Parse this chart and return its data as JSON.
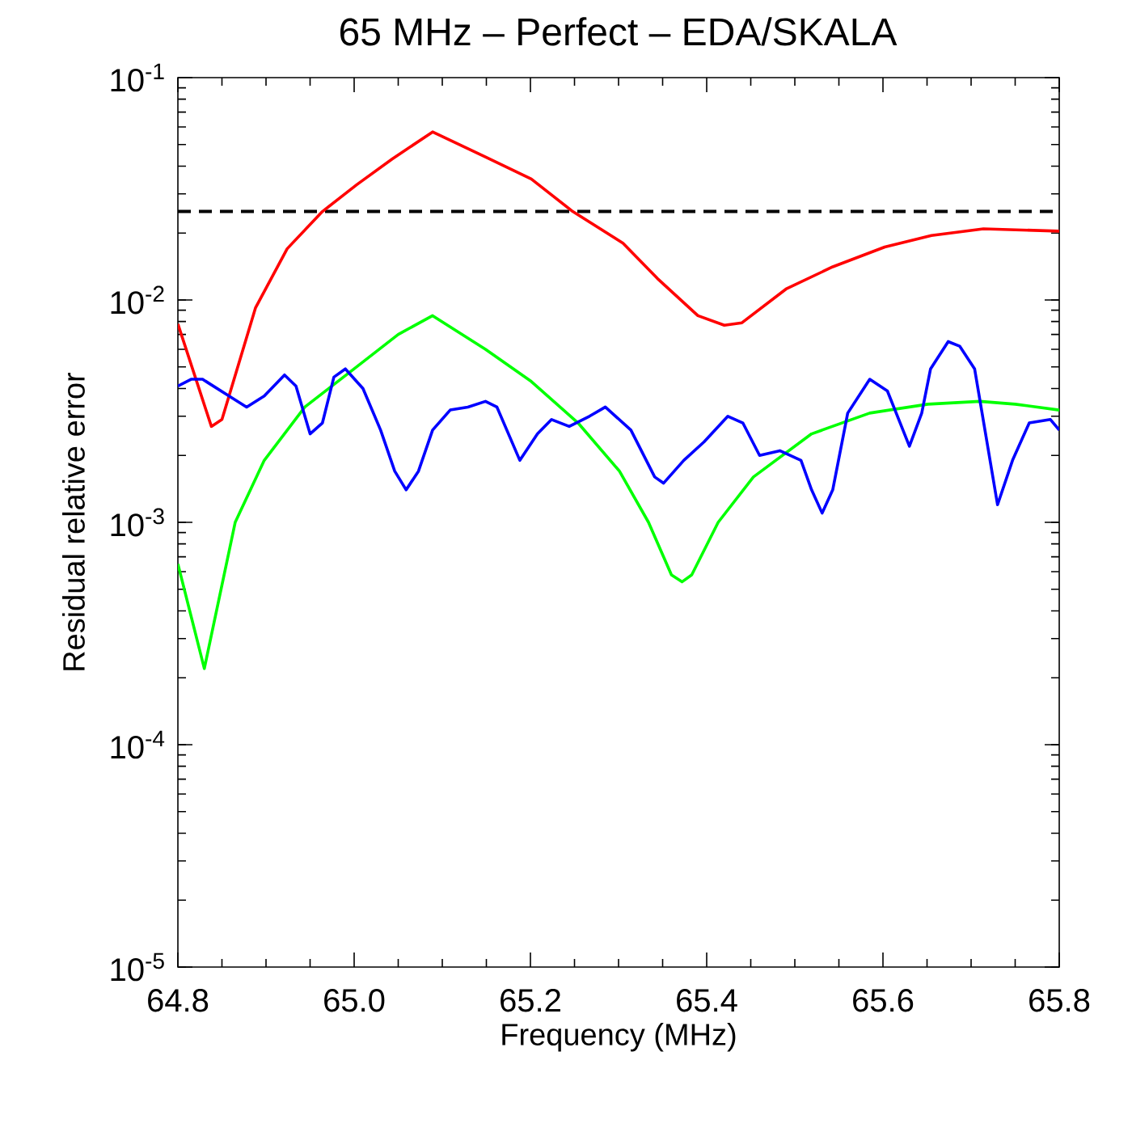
{
  "chart_data": {
    "type": "line",
    "title": "65 MHz – Perfect – EDA/SKALA",
    "xlabel": "Frequency (MHz)",
    "ylabel": "Residual relative error",
    "log": "y",
    "grid": false,
    "marker": "none",
    "line_style": "solid",
    "xlim": [
      64.8,
      65.8
    ],
    "ylim": [
      1e-05,
      0.1
    ],
    "xticks": [
      {
        "value": 64.8,
        "label": "64.8"
      },
      {
        "value": 65.0,
        "label": "65.0"
      },
      {
        "value": 65.2,
        "label": "65.2"
      },
      {
        "value": 65.4,
        "label": "65.4"
      },
      {
        "value": 65.6,
        "label": "65.6"
      },
      {
        "value": 65.8,
        "label": "65.8"
      }
    ],
    "yticks": [
      {
        "value": 1e-05,
        "label": "10$^{-5}$"
      },
      {
        "value": 0.0001,
        "label": "10$^{-4}$"
      },
      {
        "value": 0.001,
        "label": "10$^{-3}$"
      },
      {
        "value": 0.01,
        "label": "10$^{-2}$"
      },
      {
        "value": 0.1,
        "label": "10$^{-1}$"
      }
    ],
    "ref_lines": [
      {
        "axis": "y",
        "value": 0.025,
        "color": "#000000",
        "line_style": "dashed"
      }
    ],
    "series": [
      {
        "color": "#ff0000",
        "x": [
          64.8,
          64.838,
          64.85,
          64.888,
          64.924,
          64.964,
          65.003,
          65.043,
          65.089,
          65.149,
          65.201,
          65.248,
          65.305,
          65.344,
          65.39,
          65.42,
          65.44,
          65.49,
          65.543,
          65.602,
          65.655,
          65.714,
          65.8
        ],
        "values": [
          0.0078,
          0.0027,
          0.0029,
          0.0092,
          0.017,
          0.025,
          0.033,
          0.043,
          0.057,
          0.044,
          0.035,
          0.025,
          0.018,
          0.0125,
          0.0085,
          0.0077,
          0.0079,
          0.0112,
          0.0141,
          0.0173,
          0.0195,
          0.0209,
          0.0204
        ]
      },
      {
        "color": "#00ff00",
        "x": [
          64.8,
          64.83,
          64.865,
          64.898,
          64.944,
          64.997,
          65.05,
          65.089,
          65.149,
          65.201,
          65.254,
          65.301,
          65.334,
          65.36,
          65.372,
          65.383,
          65.413,
          65.453,
          65.519,
          65.585,
          65.651,
          65.71,
          65.75,
          65.8
        ],
        "values": [
          0.00065,
          0.00022,
          0.001,
          0.0019,
          0.0033,
          0.0048,
          0.007,
          0.0085,
          0.006,
          0.0043,
          0.0028,
          0.0017,
          0.001,
          0.00058,
          0.00054,
          0.00058,
          0.001,
          0.0016,
          0.0025,
          0.0031,
          0.0034,
          0.0035,
          0.0034,
          0.0032
        ]
      },
      {
        "color": "#0000ff",
        "x": [
          64.8,
          64.815,
          64.828,
          64.858,
          64.878,
          64.898,
          64.921,
          64.934,
          64.95,
          64.964,
          64.977,
          64.99,
          65.01,
          65.03,
          65.046,
          65.059,
          65.073,
          65.089,
          65.109,
          65.129,
          65.149,
          65.162,
          65.188,
          65.208,
          65.224,
          65.244,
          65.267,
          65.285,
          65.314,
          65.341,
          65.351,
          65.374,
          65.397,
          65.424,
          65.441,
          65.46,
          65.483,
          65.507,
          65.519,
          65.531,
          65.543,
          65.56,
          65.585,
          65.605,
          65.63,
          65.644,
          65.654,
          65.674,
          65.687,
          65.704,
          65.73,
          65.747,
          65.766,
          65.79,
          65.8
        ],
        "values": [
          0.0041,
          0.0044,
          0.0044,
          0.0037,
          0.0033,
          0.0037,
          0.0046,
          0.0041,
          0.0025,
          0.0028,
          0.0045,
          0.0049,
          0.004,
          0.0026,
          0.0017,
          0.0014,
          0.0017,
          0.0026,
          0.0032,
          0.0033,
          0.0035,
          0.0033,
          0.0019,
          0.0025,
          0.0029,
          0.0027,
          0.003,
          0.0033,
          0.0026,
          0.0016,
          0.0015,
          0.0019,
          0.0023,
          0.003,
          0.0028,
          0.002,
          0.0021,
          0.0019,
          0.0014,
          0.0011,
          0.0014,
          0.0031,
          0.0044,
          0.0039,
          0.0022,
          0.0031,
          0.0049,
          0.0065,
          0.0062,
          0.0049,
          0.0012,
          0.0019,
          0.0028,
          0.0029,
          0.0026
        ]
      }
    ]
  }
}
